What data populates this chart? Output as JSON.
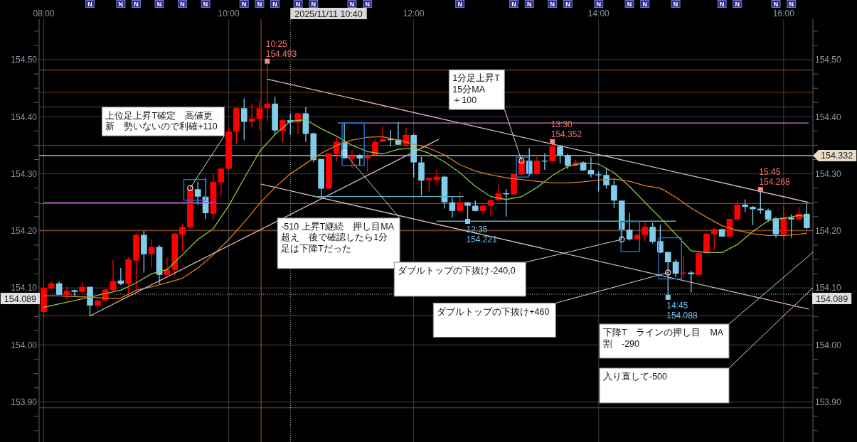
{
  "chart_data": {
    "type": "candlestick",
    "x": [
      "2025-11-11T08:00",
      "2025-11-11T08:05",
      "2025-11-11T08:10",
      "2025-11-11T08:15",
      "2025-11-11T08:20",
      "2025-11-11T08:25",
      "2025-11-11T08:30",
      "2025-11-11T08:35",
      "2025-11-11T08:40",
      "2025-11-11T08:45",
      "2025-11-11T08:50",
      "2025-11-11T08:55",
      "2025-11-11T09:00",
      "2025-11-11T09:05",
      "2025-11-11T09:10",
      "2025-11-11T09:15",
      "2025-11-11T09:20",
      "2025-11-11T09:25",
      "2025-11-11T09:30",
      "2025-11-11T09:35",
      "2025-11-11T09:40",
      "2025-11-11T09:45",
      "2025-11-11T09:50",
      "2025-11-11T09:55",
      "2025-11-11T10:00",
      "2025-11-11T10:05",
      "2025-11-11T10:10",
      "2025-11-11T10:15",
      "2025-11-11T10:20",
      "2025-11-11T10:25",
      "2025-11-11T10:30",
      "2025-11-11T10:35",
      "2025-11-11T10:40",
      "2025-11-11T10:45",
      "2025-11-11T10:50",
      "2025-11-11T10:55",
      "2025-11-11T11:00",
      "2025-11-11T11:05",
      "2025-11-11T11:10",
      "2025-11-11T11:15",
      "2025-11-11T11:20",
      "2025-11-11T11:25",
      "2025-11-11T11:30",
      "2025-11-11T11:35",
      "2025-11-11T11:40",
      "2025-11-11T11:45",
      "2025-11-11T11:50",
      "2025-11-11T11:55",
      "2025-11-11T12:00",
      "2025-11-11T12:05",
      "2025-11-11T12:10",
      "2025-11-11T12:15",
      "2025-11-11T12:20",
      "2025-11-11T12:25",
      "2025-11-11T12:30",
      "2025-11-11T12:35",
      "2025-11-11T12:40",
      "2025-11-11T12:45",
      "2025-11-11T12:50",
      "2025-11-11T12:55",
      "2025-11-11T13:00",
      "2025-11-11T13:05",
      "2025-11-11T13:10",
      "2025-11-11T13:15",
      "2025-11-11T13:20",
      "2025-11-11T13:25",
      "2025-11-11T13:30",
      "2025-11-11T13:35",
      "2025-11-11T13:40",
      "2025-11-11T13:45",
      "2025-11-11T13:50",
      "2025-11-11T13:55",
      "2025-11-11T14:00",
      "2025-11-11T14:05",
      "2025-11-11T14:10",
      "2025-11-11T14:15",
      "2025-11-11T14:20",
      "2025-11-11T14:25",
      "2025-11-11T14:30",
      "2025-11-11T14:35",
      "2025-11-11T14:40",
      "2025-11-11T14:45",
      "2025-11-11T14:50",
      "2025-11-11T14:55",
      "2025-11-11T15:00",
      "2025-11-11T15:05",
      "2025-11-11T15:10",
      "2025-11-11T15:15",
      "2025-11-11T15:20",
      "2025-11-11T15:25",
      "2025-11-11T15:30",
      "2025-11-11T15:35",
      "2025-11-11T15:40",
      "2025-11-11T15:45",
      "2025-11-11T15:50",
      "2025-11-11T15:55",
      "2025-11-11T16:00",
      "2025-11-11T16:05",
      "2025-11-11T16:10",
      "2025-11-11T16:15"
    ],
    "ohlc": [
      [
        154.058,
        154.113,
        154.048,
        154.1
      ],
      [
        154.099,
        154.112,
        154.098,
        154.108
      ],
      [
        154.108,
        154.111,
        154.088,
        154.088
      ],
      [
        154.088,
        154.102,
        154.078,
        154.095
      ],
      [
        154.096,
        154.097,
        154.086,
        154.093
      ],
      [
        154.093,
        154.11,
        154.09,
        154.102
      ],
      [
        154.102,
        154.102,
        154.051,
        154.069
      ],
      [
        154.069,
        154.08,
        154.063,
        154.078
      ],
      [
        154.078,
        154.099,
        154.074,
        154.097
      ],
      [
        154.096,
        154.149,
        154.095,
        154.112
      ],
      [
        154.113,
        154.135,
        154.105,
        154.107
      ],
      [
        154.107,
        154.154,
        154.086,
        154.15
      ],
      [
        154.148,
        154.196,
        154.096,
        154.193
      ],
      [
        154.193,
        154.2,
        154.127,
        154.159
      ],
      [
        154.159,
        154.185,
        154.136,
        154.172
      ],
      [
        154.172,
        154.175,
        154.107,
        154.123
      ],
      [
        154.123,
        154.154,
        154.122,
        154.132
      ],
      [
        154.132,
        154.196,
        154.121,
        154.195
      ],
      [
        154.194,
        154.212,
        154.165,
        154.207
      ],
      [
        154.206,
        154.275,
        154.205,
        154.273
      ],
      [
        154.273,
        154.286,
        154.246,
        154.26
      ],
      [
        154.26,
        154.293,
        154.221,
        154.231
      ],
      [
        154.23,
        154.299,
        154.219,
        154.286
      ],
      [
        154.285,
        154.311,
        154.26,
        154.309
      ],
      [
        154.309,
        154.383,
        154.307,
        154.374
      ],
      [
        154.374,
        154.417,
        154.352,
        154.415
      ],
      [
        154.415,
        154.432,
        154.359,
        154.391
      ],
      [
        154.391,
        154.422,
        154.381,
        154.397
      ],
      [
        154.396,
        154.428,
        154.377,
        154.415
      ],
      [
        154.415,
        154.493,
        154.392,
        154.423
      ],
      [
        154.423,
        154.435,
        154.369,
        154.376
      ],
      [
        154.375,
        154.395,
        154.355,
        154.394
      ],
      [
        154.394,
        154.405,
        154.369,
        154.39
      ],
      [
        154.39,
        154.407,
        154.37,
        154.406
      ],
      [
        154.406,
        154.417,
        154.356,
        154.37
      ],
      [
        154.371,
        154.372,
        154.32,
        154.324
      ],
      [
        154.326,
        154.326,
        154.26,
        154.274
      ],
      [
        154.274,
        154.336,
        154.273,
        154.336
      ],
      [
        154.335,
        154.364,
        154.322,
        154.356
      ],
      [
        154.356,
        154.39,
        154.327,
        154.327
      ],
      [
        154.327,
        154.342,
        154.31,
        154.332
      ],
      [
        154.333,
        154.334,
        154.314,
        154.327
      ],
      [
        154.327,
        154.336,
        154.303,
        154.333
      ],
      [
        154.333,
        154.36,
        154.332,
        154.356
      ],
      [
        154.356,
        154.383,
        154.356,
        154.361
      ],
      [
        154.361,
        154.377,
        154.348,
        154.359
      ],
      [
        154.36,
        154.391,
        154.351,
        154.351
      ],
      [
        154.351,
        154.381,
        154.351,
        154.368
      ],
      [
        154.368,
        154.37,
        154.294,
        154.32
      ],
      [
        154.32,
        154.33,
        154.262,
        154.288
      ],
      [
        154.289,
        154.293,
        154.268,
        154.293
      ],
      [
        154.289,
        154.308,
        154.279,
        154.295
      ],
      [
        154.295,
        154.297,
        154.239,
        154.25
      ],
      [
        154.25,
        154.258,
        154.223,
        154.235
      ],
      [
        154.235,
        154.268,
        154.233,
        154.25
      ],
      [
        154.25,
        154.251,
        154.221,
        154.244
      ],
      [
        154.244,
        154.253,
        154.234,
        154.235
      ],
      [
        154.235,
        154.244,
        154.229,
        154.244
      ],
      [
        154.244,
        154.255,
        154.225,
        154.254
      ],
      [
        154.254,
        154.281,
        154.252,
        154.266
      ],
      [
        154.266,
        154.273,
        154.225,
        154.264
      ],
      [
        154.264,
        154.3,
        154.264,
        154.3
      ],
      [
        154.299,
        154.326,
        154.297,
        154.323
      ],
      [
        154.323,
        154.345,
        154.297,
        154.3
      ],
      [
        154.3,
        154.333,
        154.299,
        154.323
      ],
      [
        154.323,
        154.336,
        154.307,
        154.322
      ],
      [
        154.322,
        154.352,
        154.322,
        154.348
      ],
      [
        154.348,
        154.349,
        154.318,
        154.333
      ],
      [
        154.333,
        154.335,
        154.308,
        154.314
      ],
      [
        154.314,
        154.325,
        154.313,
        154.32
      ],
      [
        154.32,
        154.322,
        154.305,
        154.306
      ],
      [
        154.307,
        154.329,
        154.294,
        154.299
      ],
      [
        154.299,
        154.304,
        154.269,
        154.298
      ],
      [
        154.298,
        154.311,
        154.274,
        154.28
      ],
      [
        154.28,
        154.289,
        154.24,
        154.253
      ],
      [
        154.253,
        154.253,
        154.185,
        154.202
      ],
      [
        154.202,
        154.232,
        154.183,
        154.185
      ],
      [
        154.185,
        154.194,
        154.185,
        154.193
      ],
      [
        154.193,
        154.215,
        154.182,
        154.207
      ],
      [
        154.207,
        154.214,
        154.178,
        154.181
      ],
      [
        154.182,
        154.21,
        154.161,
        154.162
      ],
      [
        154.163,
        154.163,
        154.088,
        154.145
      ],
      [
        154.146,
        154.15,
        154.119,
        154.125
      ],
      [
        154.125,
        154.156,
        154.117,
        154.127
      ],
      [
        154.127,
        154.13,
        154.092,
        154.124
      ],
      [
        154.123,
        154.163,
        154.122,
        154.161
      ],
      [
        154.161,
        154.196,
        154.16,
        154.195
      ],
      [
        154.194,
        154.205,
        154.166,
        154.203
      ],
      [
        154.203,
        154.204,
        154.19,
        154.19
      ],
      [
        154.19,
        154.221,
        154.19,
        154.221
      ],
      [
        154.22,
        154.252,
        154.219,
        154.246
      ],
      [
        154.246,
        154.255,
        154.233,
        154.242
      ],
      [
        154.242,
        154.244,
        154.21,
        154.238
      ],
      [
        154.239,
        154.268,
        154.23,
        154.236
      ],
      [
        154.236,
        154.239,
        154.215,
        154.22
      ],
      [
        154.222,
        154.224,
        154.188,
        154.194
      ],
      [
        154.194,
        154.244,
        154.185,
        154.224
      ],
      [
        154.223,
        154.229,
        154.188,
        154.22
      ],
      [
        154.22,
        154.242,
        154.218,
        154.23
      ],
      [
        154.23,
        154.248,
        154.203,
        154.205
      ]
    ],
    "colors": [
      "#ff0000",
      "#ff0000",
      "#7fcdec",
      "#ff0000",
      "#7fcdec",
      "#ff0000",
      "#7fcdec",
      "#ff0000",
      "#ff0000",
      "#ff0000",
      "#7fcdec",
      "#ff0000",
      "#ff0000",
      "#7fcdec",
      "#ff0000",
      "#7fcdec",
      "#ff0000",
      "#ff0000",
      "#ff0000",
      "#ff0000",
      "#7fcdec",
      "#7fcdec",
      "#ff0000",
      "#ff0000",
      "#ff0000",
      "#ff0000",
      "#7fcdec",
      "#ff0000",
      "#ff0000",
      "#ff0000",
      "#7fcdec",
      "#ff0000",
      "#7fcdec",
      "#ff0000",
      "#7fcdec",
      "#7fcdec",
      "#7fcdec",
      "#ff0000",
      "#ff0000",
      "#7fcdec",
      "#ff0000",
      "#7fcdec",
      "#ff0000",
      "#ff0000",
      "#ff0000",
      "#7fcdec",
      "#7fcdec",
      "#ff0000",
      "#7fcdec",
      "#7fcdec",
      "#ff0000",
      "#ff0000",
      "#7fcdec",
      "#7fcdec",
      "#ff0000",
      "#7fcdec",
      "#7fcdec",
      "#ff0000",
      "#ff0000",
      "#ff0000",
      "#7fcdec",
      "#ff0000",
      "#ff0000",
      "#7fcdec",
      "#ff0000",
      "#7fcdec",
      "#ff0000",
      "#7fcdec",
      "#7fcdec",
      "#ff0000",
      "#7fcdec",
      "#7fcdec",
      "#7fcdec",
      "#7fcdec",
      "#7fcdec",
      "#7fcdec",
      "#7fcdec",
      "#ff0000",
      "#ff0000",
      "#7fcdec",
      "#7fcdec",
      "#7fcdec",
      "#7fcdec",
      "#ff0000",
      "#7fcdec",
      "#ff0000",
      "#ff0000",
      "#ff0000",
      "#7fcdec",
      "#ff0000",
      "#ff0000",
      "#7fcdec",
      "#7fcdec",
      "#7fcdec",
      "#7fcdec",
      "#7fcdec",
      "#ff0000",
      "#7fcdec",
      "#ff0000",
      "#7fcdec"
    ],
    "value_labels": [
      null,
      null,
      null,
      null,
      null,
      null,
      "N",
      null,
      null,
      null,
      "N",
      null,
      "N",
      null,
      null,
      "N",
      null,
      null,
      "N",
      null,
      null,
      "N",
      null,
      null,
      null,
      null,
      "N",
      null,
      "N",
      null,
      "N",
      null,
      null,
      "N",
      null,
      "N",
      null,
      null,
      null,
      null,
      "N",
      null,
      "N",
      null,
      null,
      null,
      null,
      null,
      null,
      null,
      null,
      null,
      null,
      null,
      "N",
      null,
      null,
      null,
      null,
      null,
      null,
      "N",
      null,
      "N",
      null,
      null,
      "N",
      null,
      "N",
      null,
      null,
      null,
      "N",
      null,
      null,
      null,
      "N",
      null,
      "N",
      null,
      null,
      null,
      "N",
      null,
      null,
      null,
      null,
      null,
      "N",
      null,
      "N",
      null,
      null,
      null,
      null,
      "N",
      null,
      "N",
      null,
      null
    ],
    "series": [
      {
        "type": "line",
        "color": "#8dc63f",
        "x": [
          "2025-11-11T08:00",
          "2025-11-11T08:10",
          "2025-11-11T08:20",
          "2025-11-11T08:30",
          "2025-11-11T08:40",
          "2025-11-11T08:50",
          "2025-11-11T09:00",
          "2025-11-11T09:10",
          "2025-11-11T09:20",
          "2025-11-11T09:30",
          "2025-11-11T09:40",
          "2025-11-11T09:50",
          "2025-11-11T10:00",
          "2025-11-11T10:10",
          "2025-11-11T10:20",
          "2025-11-11T10:30",
          "2025-11-11T10:40",
          "2025-11-11T10:50",
          "2025-11-11T11:00",
          "2025-11-11T11:10",
          "2025-11-11T11:20",
          "2025-11-11T11:30",
          "2025-11-11T11:40",
          "2025-11-11T11:50",
          "2025-11-11T12:00",
          "2025-11-11T12:10",
          "2025-11-11T12:20",
          "2025-11-11T12:30",
          "2025-11-11T12:40",
          "2025-11-11T12:50",
          "2025-11-11T13:00",
          "2025-11-11T13:10",
          "2025-11-11T13:20",
          "2025-11-11T13:30",
          "2025-11-11T13:40",
          "2025-11-11T13:50",
          "2025-11-11T14:00",
          "2025-11-11T14:10",
          "2025-11-11T14:20",
          "2025-11-11T14:30",
          "2025-11-11T14:40",
          "2025-11-11T14:50",
          "2025-11-11T15:00",
          "2025-11-11T15:10",
          "2025-11-11T15:20",
          "2025-11-11T15:30",
          "2025-11-11T15:40",
          "2025-11-11T15:50",
          "2025-11-11T16:00",
          "2025-11-11T16:10",
          "2025-11-11T16:15"
        ],
        "values": [
          154.066,
          154.072,
          154.078,
          154.084,
          154.09,
          154.096,
          154.109,
          154.125,
          154.132,
          154.158,
          154.185,
          154.204,
          154.244,
          154.292,
          154.339,
          154.369,
          154.392,
          154.395,
          154.379,
          154.366,
          154.35,
          154.339,
          154.335,
          154.343,
          154.345,
          154.336,
          154.321,
          154.302,
          154.278,
          154.26,
          154.255,
          154.26,
          154.276,
          154.297,
          154.313,
          154.319,
          154.317,
          154.302,
          154.278,
          154.25,
          154.223,
          154.194,
          154.165,
          154.162,
          154.162,
          154.176,
          154.199,
          154.218,
          154.222,
          154.227,
          154.225
        ]
      },
      {
        "type": "line",
        "color": "#e07f22",
        "x": [
          "2025-11-11T08:00",
          "2025-11-11T08:10",
          "2025-11-11T08:20",
          "2025-11-11T08:30",
          "2025-11-11T08:40",
          "2025-11-11T08:50",
          "2025-11-11T09:00",
          "2025-11-11T09:10",
          "2025-11-11T09:20",
          "2025-11-11T09:30",
          "2025-11-11T09:40",
          "2025-11-11T09:50",
          "2025-11-11T10:00",
          "2025-11-11T10:10",
          "2025-11-11T10:20",
          "2025-11-11T10:30",
          "2025-11-11T10:40",
          "2025-11-11T10:50",
          "2025-11-11T11:00",
          "2025-11-11T11:10",
          "2025-11-11T11:20",
          "2025-11-11T11:30",
          "2025-11-11T11:40",
          "2025-11-11T11:50",
          "2025-11-11T12:00",
          "2025-11-11T12:10",
          "2025-11-11T12:20",
          "2025-11-11T12:30",
          "2025-11-11T12:40",
          "2025-11-11T12:50",
          "2025-11-11T13:00",
          "2025-11-11T13:10",
          "2025-11-11T13:20",
          "2025-11-11T13:30",
          "2025-11-11T13:40",
          "2025-11-11T13:50",
          "2025-11-11T14:00",
          "2025-11-11T14:10",
          "2025-11-11T14:20",
          "2025-11-11T14:30",
          "2025-11-11T14:40",
          "2025-11-11T14:50",
          "2025-11-11T15:00",
          "2025-11-11T15:10",
          "2025-11-11T15:20",
          "2025-11-11T15:30",
          "2025-11-11T15:40",
          "2025-11-11T15:50",
          "2025-11-11T16:00",
          "2025-11-11T16:10",
          "2025-11-11T16:15"
        ],
        "values": [
          154.086,
          154.086,
          154.085,
          154.084,
          154.082,
          154.082,
          154.096,
          154.102,
          154.109,
          154.117,
          154.135,
          154.158,
          154.185,
          154.215,
          154.248,
          154.276,
          154.3,
          154.318,
          154.336,
          154.35,
          154.359,
          154.364,
          154.365,
          154.359,
          154.352,
          154.345,
          154.333,
          154.316,
          154.305,
          154.298,
          154.293,
          154.29,
          154.287,
          154.284,
          154.284,
          154.286,
          154.289,
          154.291,
          154.287,
          154.279,
          154.275,
          154.259,
          154.24,
          154.224,
          154.209,
          154.201,
          154.195,
          154.192,
          154.192,
          154.194,
          154.196
        ]
      },
      {
        "type": "line",
        "color": "#d9b6b6",
        "x": [
          "2025-11-11T08:30",
          "2025-11-11T12:16"
        ],
        "values": [
          154.051,
          154.36
        ]
      },
      {
        "type": "line",
        "color": "#d9b6b6",
        "x": [
          "2025-11-11T10:25",
          "2025-11-11T16:16"
        ],
        "values": [
          154.466,
          154.25
        ]
      },
      {
        "type": "line",
        "color": "#d9b6b6",
        "x": [
          "2025-11-11T10:21",
          "2025-11-11T16:16"
        ],
        "values": [
          154.282,
          154.063
        ]
      },
      {
        "type": "line",
        "color": "#9b50b4",
        "x": [
          "2025-11-11T08:00",
          "2025-11-11T09:51"
        ],
        "values": [
          154.25,
          154.25
        ]
      },
      {
        "type": "line",
        "color": "#c57ac8",
        "x": [
          "2025-11-11T11:11",
          "2025-11-11T16:16"
        ],
        "values": [
          154.389,
          154.389
        ]
      },
      {
        "type": "line",
        "color": "#5cb3c2",
        "x": [
          "2025-11-11T10:55",
          "2025-11-11T12:32"
        ],
        "values": [
          154.26,
          154.26
        ]
      },
      {
        "type": "line",
        "color": "#5cb3c2",
        "x": [
          "2025-11-11T12:15",
          "2025-11-11T14:50"
        ],
        "values": [
          154.217,
          154.217
        ]
      }
    ],
    "xlim": [
      "2025-11-11T07:57",
      "2025-11-11T16:19"
    ],
    "xticks": [
      {
        "value": "2025-11-11T08:00",
        "label": "08:00"
      },
      {
        "value": "2025-11-11T10:00",
        "label": "10:00"
      },
      {
        "value": "2025-11-11T12:00",
        "label": "12:00"
      },
      {
        "value": "2025-11-11T14:00",
        "label": "14:00"
      },
      {
        "value": "2025-11-11T16:00",
        "label": "16:00"
      }
    ],
    "ylim": [
      153.83,
      154.571
    ],
    "yticks": [
      {
        "value": 153.85,
        "label": null
      },
      {
        "value": 153.875,
        "label": null
      },
      {
        "value": 153.9,
        "label": "153.90"
      },
      {
        "value": 153.925,
        "label": null
      },
      {
        "value": 153.95,
        "label": null
      },
      {
        "value": 153.975,
        "label": null
      },
      {
        "value": 154,
        "label": "154.00"
      },
      {
        "value": 154.025,
        "label": null
      },
      {
        "value": 154.05,
        "label": null
      },
      {
        "value": 154.075,
        "label": null
      },
      {
        "value": 154.1,
        "label": "154.10"
      },
      {
        "value": 154.125,
        "label": null
      },
      {
        "value": 154.15,
        "label": null
      },
      {
        "value": 154.175,
        "label": null
      },
      {
        "value": 154.2,
        "label": "154.20"
      },
      {
        "value": 154.225,
        "label": null
      },
      {
        "value": 154.25,
        "label": null
      },
      {
        "value": 154.275,
        "label": null
      },
      {
        "value": 154.3,
        "label": "154.30"
      },
      {
        "value": 154.325,
        "label": null
      },
      {
        "value": 154.35,
        "label": null
      },
      {
        "value": 154.375,
        "label": null
      },
      {
        "value": 154.4,
        "label": "154.40"
      },
      {
        "value": 154.425,
        "label": null
      },
      {
        "value": 154.45,
        "label": null
      },
      {
        "value": 154.475,
        "label": null
      },
      {
        "value": 154.5,
        "label": "154.50"
      },
      {
        "value": 154.525,
        "label": null
      },
      {
        "value": 154.55,
        "label": null
      }
    ],
    "y2lim": [
      153.83,
      154.571
    ],
    "y2ticks": [
      {
        "value": 153.85,
        "label": null
      },
      {
        "value": 153.875,
        "label": null
      },
      {
        "value": 153.9,
        "label": "153.90"
      },
      {
        "value": 153.925,
        "label": null
      },
      {
        "value": 153.95,
        "label": null
      },
      {
        "value": 153.975,
        "label": null
      },
      {
        "value": 154,
        "label": "154.00"
      },
      {
        "value": 154.025,
        "label": null
      },
      {
        "value": 154.05,
        "label": null
      },
      {
        "value": 154.075,
        "label": null
      },
      {
        "value": 154.1,
        "label": "154.10"
      },
      {
        "value": 154.125,
        "label": null
      },
      {
        "value": 154.15,
        "label": null
      },
      {
        "value": 154.175,
        "label": null
      },
      {
        "value": 154.2,
        "label": "154.20"
      },
      {
        "value": 154.225,
        "label": null
      },
      {
        "value": 154.25,
        "label": null
      },
      {
        "value": 154.275,
        "label": null
      },
      {
        "value": 154.3,
        "label": "154.30"
      },
      {
        "value": 154.325,
        "label": null
      },
      {
        "value": 154.35,
        "label": null
      },
      {
        "value": 154.375,
        "label": null
      },
      {
        "value": 154.4,
        "label": "154.40"
      },
      {
        "value": 154.425,
        "label": null
      },
      {
        "value": 154.45,
        "label": null
      },
      {
        "value": 154.475,
        "label": null
      },
      {
        "value": 154.5,
        "label": "154.50"
      },
      {
        "value": 154.525,
        "label": null
      },
      {
        "value": 154.55,
        "label": null
      }
    ],
    "grid": true,
    "ref_lines": [
      {
        "axis": "y",
        "value": 154.482,
        "color": "#a8581c"
      },
      {
        "axis": "y",
        "value": 154.443,
        "color": "#7a4418"
      },
      {
        "axis": "y",
        "value": 154.417,
        "color": "#7a4418"
      },
      {
        "axis": "y",
        "value": 154.35,
        "color": "#7a4418"
      },
      {
        "axis": "y",
        "value": 154.248,
        "color": "#a8581c"
      },
      {
        "axis": "y",
        "value": 154.201,
        "color": "#a8581c"
      },
      {
        "axis": "y",
        "value": 154.051,
        "color": "#7a4418"
      },
      {
        "axis": "y",
        "value": 154,
        "color": "#7a4418"
      },
      {
        "axis": "y",
        "value": 153.89,
        "color": "#7a4418"
      },
      {
        "axis": "x",
        "value": "2025-11-11T10:21",
        "color": "#a8581c"
      },
      {
        "axis": "y",
        "value": 154.332,
        "label": "154.332",
        "color": "#ffffff"
      },
      {
        "axis": "y",
        "value": 154.089,
        "label": "154.089",
        "color": "#c8c8c8",
        "line_style": "dotted"
      },
      {
        "axis": "x",
        "value": "2025-11-11T10:40",
        "label": "2025/11/11 10:40",
        "color": "#c8c8c8",
        "line_style": "dotted"
      }
    ],
    "annotations": [
      {
        "text": "上位足上昇T確定　高値更新　勢いないので利確+110",
        "x": "2025-11-11T09:35",
        "y": 154.275
      },
      {
        "text": "1分足上昇T\n15分MA\n＋100",
        "x": "2025-11-11T13:10",
        "y": 154.323
      },
      {
        "text": "-510 上昇T継続　押し目MA超え　後で確認したら1分足は下降Tだった",
        "x": "2025-11-11T11:15",
        "y": 154.337
      },
      {
        "text": "ダブルトップの下抜け-240,0",
        "x": "2025-11-11T14:15",
        "y": 154.185
      },
      {
        "text": "ダブルトップの下抜け+460",
        "x": "2025-11-11T14:45",
        "y": 154.127
      },
      "下降T　ラインの押し目　MA割　-290",
      "入り直して-500",
      {
        "text": "10:25\n154.493",
        "x": "2025-11-11T10:25",
        "y": 154.493
      },
      {
        "text": "12:35\n154.221",
        "x": "2025-11-11T12:35",
        "y": 154.221
      },
      {
        "text": "13:30\n154.352",
        "x": "2025-11-11T13:30",
        "y": 154.352
      },
      {
        "text": "14:45\n154.088",
        "x": "2025-11-11T14:45",
        "y": 154.088
      },
      {
        "text": "15:45\n154.268",
        "x": "2025-11-11T15:45",
        "y": 154.268
      }
    ]
  }
}
